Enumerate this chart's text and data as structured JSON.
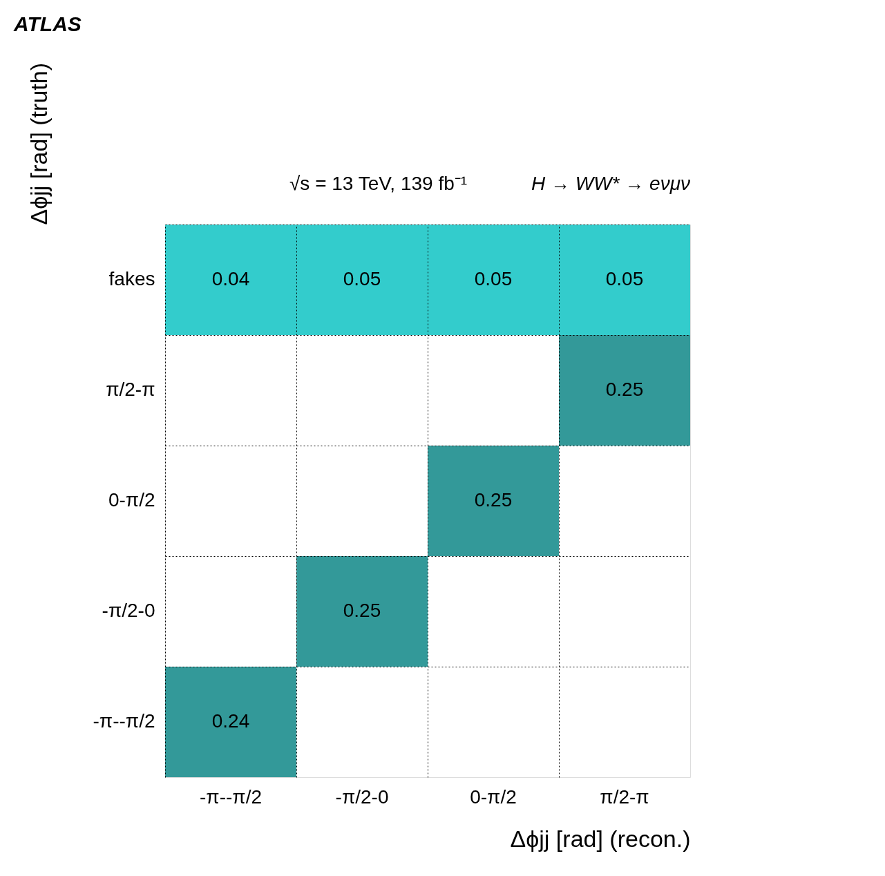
{
  "chart_data": {
    "type": "heatmap",
    "title": "ATLAS",
    "annotations": [
      "√s = 13 TeV, 139 fb⁻¹",
      "H → WW* → eνμν"
    ],
    "xlabel": "Δϕjj [rad] (recon.)",
    "ylabel": "Δϕjj [rad] (truth)",
    "categories": [
      "-π--π/2",
      "-π/2-0",
      "0-π/2",
      "π/2-π"
    ],
    "y_categories": [
      "fakes",
      "π/2-π",
      "0-π/2",
      "-π/2-0",
      "-π--π/2"
    ],
    "cells": [
      [
        0.04,
        0.05,
        0.05,
        0.05
      ],
      [
        null,
        null,
        null,
        0.25
      ],
      [
        null,
        null,
        0.25,
        null
      ],
      [
        null,
        0.25,
        null,
        null
      ],
      [
        0.24,
        null,
        null,
        null
      ]
    ],
    "colors": [
      "#33cccc",
      "#339999",
      "#339999",
      "#339999",
      "#339999"
    ],
    "data_labels": true,
    "grid": true
  }
}
